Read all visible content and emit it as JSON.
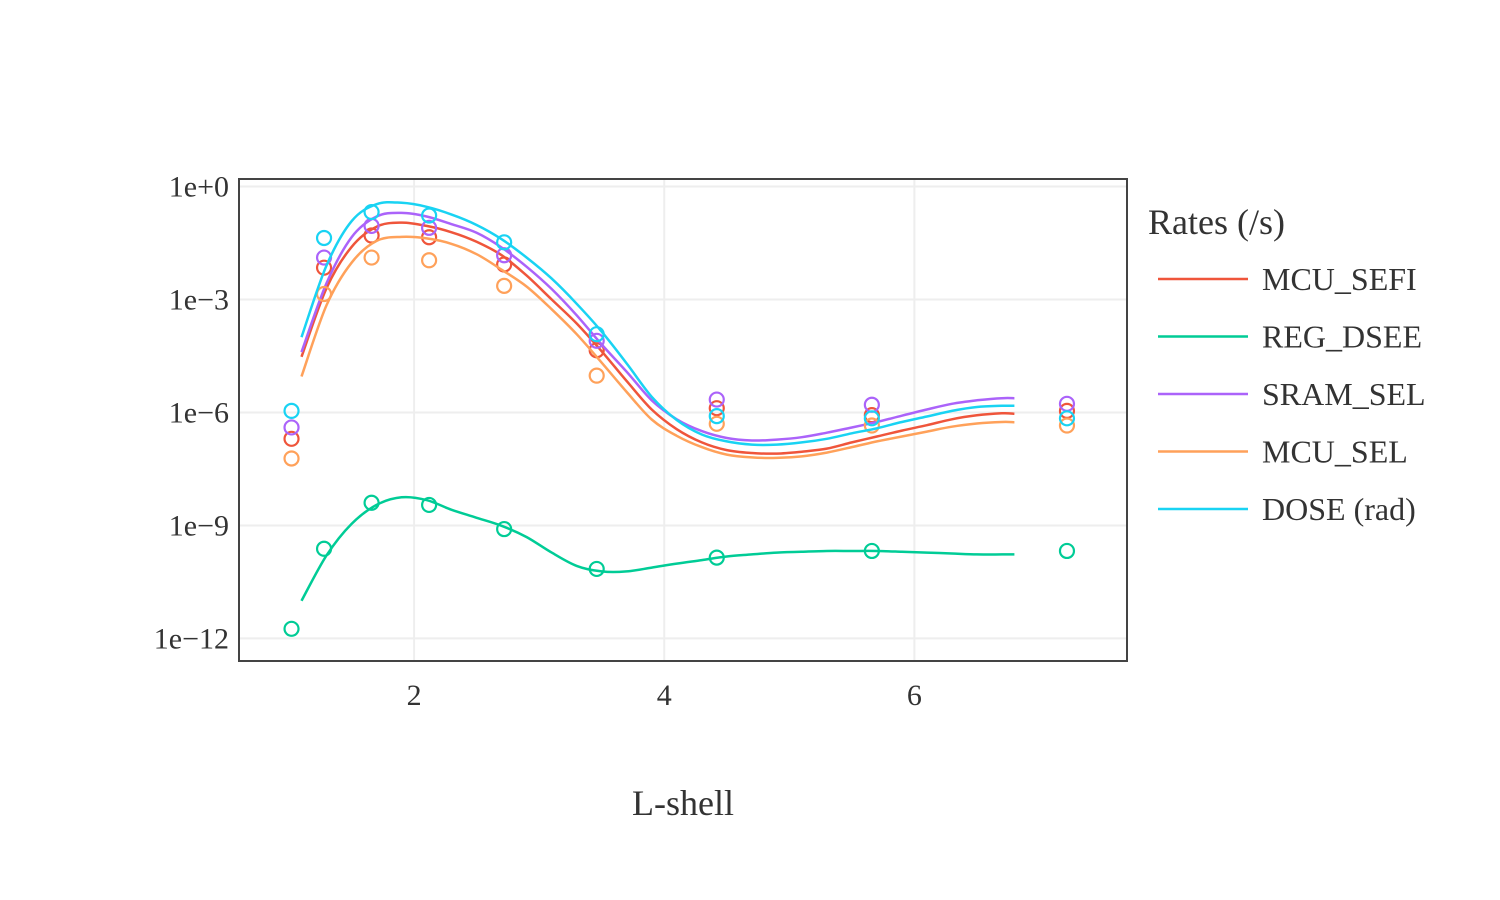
{
  "chart_data": {
    "type": "line",
    "title": "",
    "xlabel": "L-shell",
    "ylabel": "",
    "x_scale": "linear",
    "y_scale": "log",
    "xlim": [
      0.6,
      7.7
    ],
    "ylim_exponent": [
      -12.6,
      0.2
    ],
    "grid": true,
    "x_ticks": [
      {
        "value": 2,
        "label": "2"
      },
      {
        "value": 4,
        "label": "4"
      },
      {
        "value": 6,
        "label": "6"
      }
    ],
    "y_ticks": [
      {
        "exp": 0,
        "label": "1e+0"
      },
      {
        "exp": -3,
        "label": "1e−3"
      },
      {
        "exp": -6,
        "label": "1e−6"
      },
      {
        "exp": -9,
        "label": "1e−9"
      },
      {
        "exp": -12,
        "label": "1e−12"
      }
    ],
    "legend": {
      "title": "Rates (/s)",
      "position": "right"
    },
    "marker_x": [
      1.02,
      1.28,
      1.66,
      2.12,
      2.72,
      3.46,
      4.42,
      5.66,
      7.22
    ],
    "curve_x": [
      1.1,
      1.3,
      1.5,
      1.7,
      1.9,
      2.1,
      2.3,
      2.5,
      2.7,
      2.9,
      3.1,
      3.3,
      3.5,
      3.7,
      3.9,
      4.1,
      4.3,
      4.5,
      4.7,
      4.9,
      5.1,
      5.3,
      5.5,
      5.7,
      5.9,
      6.1,
      6.3,
      6.5,
      6.7,
      6.8
    ],
    "series": [
      {
        "name": "MCU_SEFI",
        "color": "#EF553B",
        "markers": [
          2e-07,
          0.007,
          0.05,
          0.045,
          0.0085,
          4.5e-05,
          1.3e-06,
          8.5e-07,
          1.1e-06
        ],
        "curve": [
          3e-05,
          0.002,
          0.025,
          0.086,
          0.11,
          0.09,
          0.061,
          0.034,
          0.015,
          0.0043,
          0.001,
          0.00023,
          4.2e-05,
          6.8e-06,
          1.2e-06,
          3.6e-07,
          1.6e-07,
          1e-07,
          8.4e-08,
          8.1e-08,
          9.1e-08,
          1.1e-07,
          1.6e-07,
          2.3e-07,
          3.3e-07,
          4.6e-07,
          6.6e-07,
          8.4e-07,
          9.5e-07,
          9.3e-07
        ]
      },
      {
        "name": "REG_DSEE",
        "color": "#00CC96",
        "markers": [
          1.8e-12,
          2.4e-10,
          4e-09,
          3.5e-09,
          8e-10,
          7e-11,
          1.4e-10,
          2.1e-10,
          2.1e-10
        ],
        "curve": [
          1e-11,
          1.6e-10,
          1.1e-09,
          3.5e-09,
          5.6e-09,
          4.7e-09,
          2.6e-09,
          1.6e-09,
          9.8e-10,
          4.9e-10,
          1.9e-10,
          8.4e-11,
          6e-11,
          6e-11,
          7.6e-11,
          9.7e-11,
          1.2e-10,
          1.5e-10,
          1.7e-10,
          1.9e-10,
          2e-10,
          2.1e-10,
          2.1e-10,
          2.1e-10,
          2e-10,
          1.9e-10,
          1.8e-10,
          1.7e-10,
          1.7e-10,
          1.7e-10
        ]
      },
      {
        "name": "SRAM_SEL",
        "color": "#AB63FA",
        "markers": [
          4e-07,
          0.013,
          0.09,
          0.08,
          0.015,
          8e-05,
          2.2e-06,
          1.6e-06,
          1.7e-06
        ],
        "curve": [
          4e-05,
          0.0027,
          0.045,
          0.16,
          0.2,
          0.16,
          0.1,
          0.059,
          0.024,
          0.0074,
          0.0019,
          0.00038,
          6.4e-05,
          1.2e-05,
          2.1e-06,
          6.6e-07,
          3.2e-07,
          2.1e-07,
          1.8e-07,
          1.9e-07,
          2.2e-07,
          2.9e-07,
          4e-07,
          5.6e-07,
          8.2e-07,
          1.2e-06,
          1.7e-06,
          2.1e-06,
          2.4e-06,
          2.4e-06
        ]
      },
      {
        "name": "MCU_SEL",
        "color": "#FFA15A",
        "markers": [
          6e-08,
          0.0014,
          0.013,
          0.011,
          0.0023,
          9.5e-06,
          5e-07,
          4.5e-07,
          4.5e-07
        ],
        "curve": [
          9e-06,
          0.0007,
          0.0095,
          0.036,
          0.046,
          0.042,
          0.03,
          0.016,
          0.0062,
          0.0022,
          0.00055,
          0.00012,
          2.1e-05,
          3.5e-06,
          6.5e-07,
          2.4e-07,
          1.2e-07,
          7.6e-08,
          6.4e-08,
          6.2e-08,
          6.8e-08,
          8.6e-08,
          1.2e-07,
          1.7e-07,
          2.3e-07,
          3.1e-07,
          4.2e-07,
          5.1e-07,
          5.6e-07,
          5.5e-07
        ]
      },
      {
        "name": "DOSE (rad)",
        "color": "#19D3F3",
        "markers": [
          1.1e-06,
          0.043,
          0.21,
          0.17,
          0.033,
          0.00012,
          8e-07,
          7e-07,
          7e-07
        ],
        "curve": [
          0.0001,
          0.008,
          0.12,
          0.34,
          0.37,
          0.29,
          0.18,
          0.095,
          0.04,
          0.013,
          0.0036,
          0.00077,
          0.00014,
          2e-05,
          2.6e-06,
          6.3e-07,
          2.6e-07,
          1.7e-07,
          1.4e-07,
          1.4e-07,
          1.6e-07,
          2e-07,
          2.8e-07,
          3.8e-07,
          5.6e-07,
          7.8e-07,
          1.1e-06,
          1.4e-06,
          1.5e-06,
          1.5e-06
        ]
      }
    ]
  }
}
